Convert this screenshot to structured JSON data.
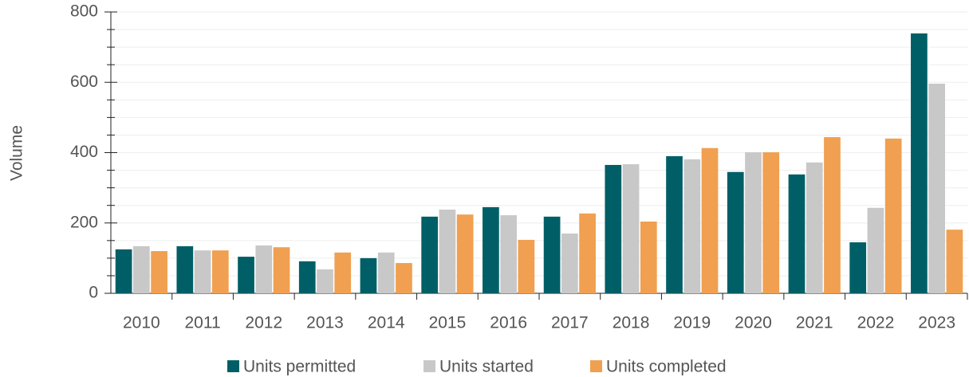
{
  "chart_data": {
    "type": "bar",
    "y_label": "Volume",
    "categories": [
      "2010",
      "2011",
      "2012",
      "2013",
      "2014",
      "2015",
      "2016",
      "2017",
      "2018",
      "2019",
      "2020",
      "2021",
      "2022",
      "2023"
    ],
    "series": [
      {
        "name": "Units permitted",
        "color": "#005f66",
        "values": [
          125,
          134,
          104,
          91,
          100,
          218,
          245,
          218,
          365,
          390,
          345,
          338,
          145,
          739
        ]
      },
      {
        "name": "Units started",
        "color": "#c8c8c8",
        "values": [
          134,
          122,
          136,
          68,
          116,
          238,
          222,
          170,
          367,
          381,
          401,
          372,
          243,
          596
        ]
      },
      {
        "name": "Units completed",
        "color": "#f0a050",
        "values": [
          120,
          122,
          131,
          116,
          86,
          224,
          152,
          227,
          204,
          413,
          401,
          444,
          440,
          181
        ]
      }
    ],
    "ylim": [
      0,
      800
    ],
    "yticks": [
      0,
      200,
      400,
      600,
      800
    ],
    "yminor_ticks": [
      50,
      100,
      150,
      250,
      300,
      350,
      450,
      500,
      550,
      650,
      700,
      750
    ],
    "grid": true,
    "legend": "bottom"
  }
}
